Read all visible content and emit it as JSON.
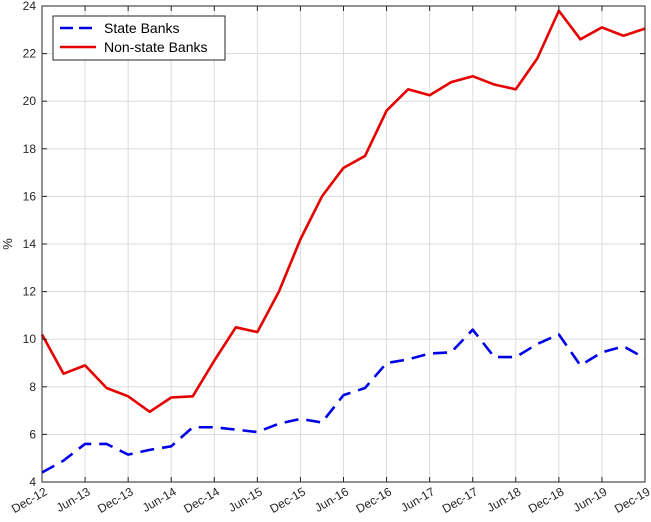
{
  "chart_data": {
    "type": "line",
    "title": "",
    "xlabel": "",
    "ylabel": "%",
    "x": [
      "Dec-12",
      "Mar-13",
      "Jun-13",
      "Sep-13",
      "Dec-13",
      "Mar-14",
      "Jun-14",
      "Sep-14",
      "Dec-14",
      "Mar-15",
      "Jun-15",
      "Sep-15",
      "Dec-15",
      "Mar-16",
      "Jun-16",
      "Sep-16",
      "Dec-16",
      "Mar-17",
      "Jun-17",
      "Sep-17",
      "Dec-17",
      "Mar-18",
      "Jun-18",
      "Sep-18",
      "Dec-18",
      "Mar-19",
      "Jun-19",
      "Sep-19",
      "Dec-19"
    ],
    "xticks": [
      "Dec-12",
      "Jun-13",
      "Dec-13",
      "Jun-14",
      "Dec-14",
      "Jun-15",
      "Dec-15",
      "Jun-16",
      "Dec-16",
      "Jun-17",
      "Dec-17",
      "Jun-18",
      "Dec-18",
      "Jun-19",
      "Dec-19"
    ],
    "ylim": [
      4,
      24
    ],
    "yticks": [
      "4",
      "6",
      "8",
      "10",
      "12",
      "14",
      "16",
      "18",
      "20",
      "22",
      "24"
    ],
    "grid": true,
    "legend_position": "top-left",
    "series": [
      {
        "name": "State Banks",
        "color": "#0000e6",
        "style": "dashed",
        "values": [
          4.4,
          4.9,
          5.6,
          5.6,
          5.15,
          5.35,
          5.5,
          6.3,
          6.3,
          6.2,
          6.1,
          6.45,
          6.65,
          6.5,
          7.65,
          7.95,
          9.0,
          9.15,
          9.4,
          9.45,
          10.4,
          9.25,
          9.25,
          9.8,
          10.2,
          8.9,
          9.45,
          9.7,
          9.2
        ]
      },
      {
        "name": "Non-state Banks",
        "color": "#e60000",
        "style": "solid",
        "values": [
          10.2,
          8.55,
          8.9,
          7.95,
          7.6,
          6.95,
          7.55,
          7.6,
          9.1,
          10.5,
          10.3,
          12.0,
          14.2,
          16.0,
          17.2,
          17.7,
          19.6,
          20.5,
          20.25,
          20.8,
          21.05,
          20.7,
          20.5,
          21.8,
          23.8,
          22.6,
          23.1,
          22.75,
          23.05
        ]
      }
    ]
  }
}
